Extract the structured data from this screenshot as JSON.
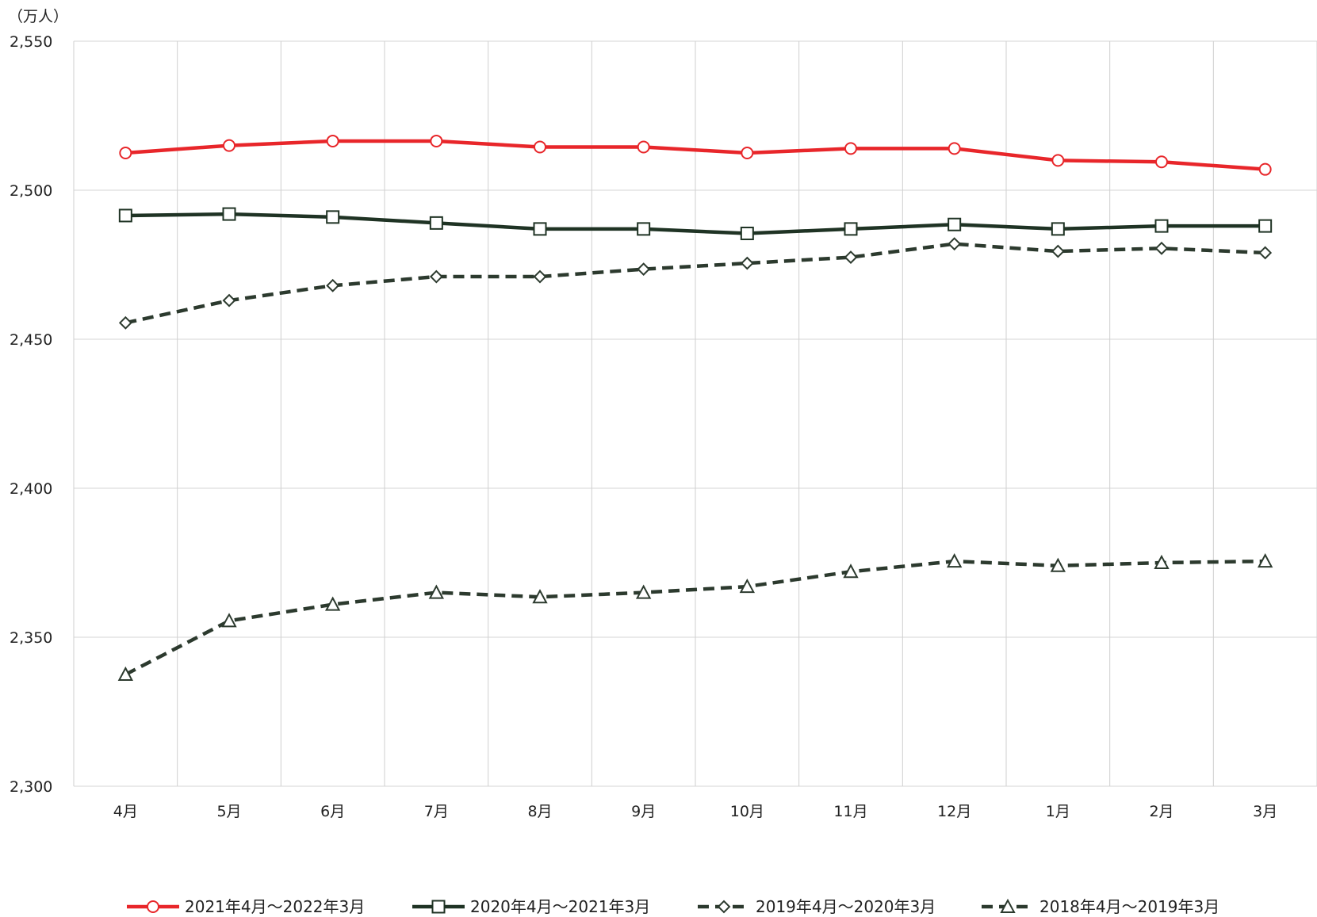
{
  "chart_data": {
    "type": "line",
    "unit_label": "（万人）",
    "categories": [
      "4月",
      "5月",
      "6月",
      "7月",
      "8月",
      "9月",
      "10月",
      "11月",
      "12月",
      "1月",
      "2月",
      "3月"
    ],
    "ylim": [
      2300,
      2550
    ],
    "yticks": [
      2550,
      2500,
      2450,
      2400,
      2350,
      2300
    ],
    "ytick_labels": [
      "2,550",
      "2,500",
      "2,450",
      "2,400",
      "2,350",
      "2,300"
    ],
    "grid": true,
    "legend_position": "bottom",
    "series": [
      {
        "name": "2021年4月～2022年3月",
        "color": "#e8262a",
        "line": "solid",
        "marker": "circle",
        "values": [
          2512.5,
          2515,
          2516.5,
          2516.5,
          2514.5,
          2514.5,
          2512.5,
          2514,
          2514,
          2510,
          2509.5,
          2507
        ]
      },
      {
        "name": "2020年4月～2021年3月",
        "color": "#1f3324",
        "line": "solid",
        "marker": "square",
        "values": [
          2491.5,
          2492,
          2491,
          2489,
          2487,
          2487,
          2485.5,
          2487,
          2488.5,
          2487,
          2488,
          2488
        ]
      },
      {
        "name": "2019年4月～2020年3月",
        "color": "#2c3a2e",
        "line": "dashed",
        "marker": "diamond",
        "values": [
          2455.5,
          2463,
          2468,
          2471,
          2471,
          2473.5,
          2475.5,
          2477.5,
          2482,
          2479.5,
          2480.5,
          2479
        ]
      },
      {
        "name": "2018年4月～2019年3月",
        "color": "#2c3a2e",
        "line": "dashed",
        "marker": "triangle",
        "values": [
          2337.5,
          2355.5,
          2361,
          2365,
          2363.5,
          2365,
          2367,
          2372,
          2375.5,
          2374,
          2375,
          2375.5
        ]
      }
    ]
  }
}
